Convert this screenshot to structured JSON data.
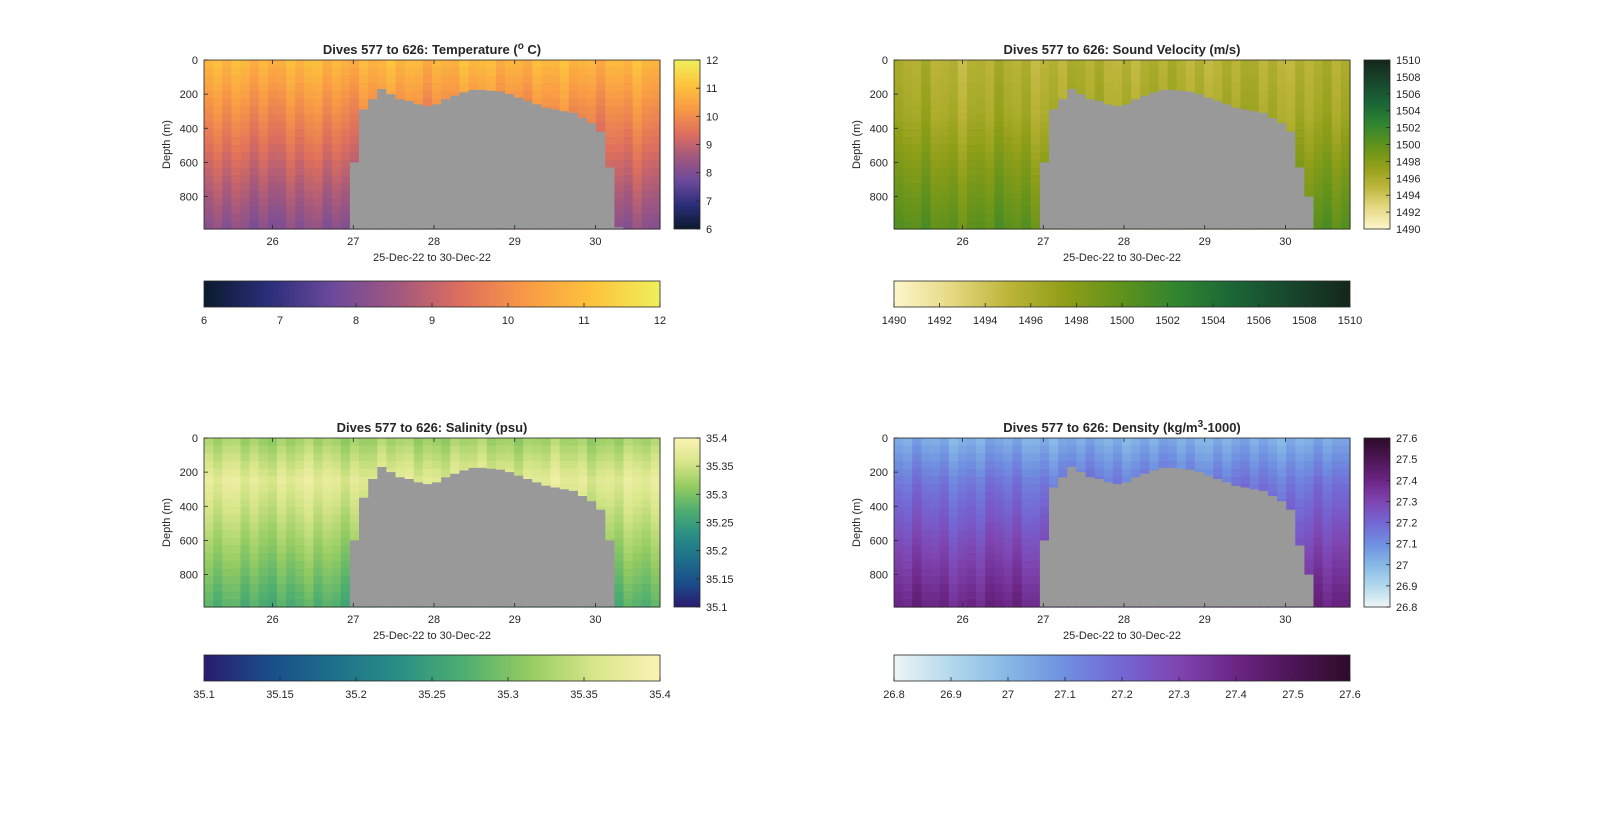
{
  "figure": {
    "background": "#ffffff",
    "land_color": "#999999",
    "panels": [
      "temperature",
      "sound_velocity",
      "salinity",
      "density"
    ]
  },
  "chart_data": [
    {
      "id": "temperature",
      "type": "heatmap",
      "title_main": "Dives 577 to 626: Temperature (",
      "title_sup": "o",
      "title_tail": " C)",
      "xlabel": "25-Dec-22 to 30-Dec-22",
      "ylabel": "Depth (m)",
      "xlim": [
        25.15,
        30.8
      ],
      "ylim": [
        0,
        990
      ],
      "xticks": [
        "26",
        "27",
        "28",
        "29",
        "30"
      ],
      "xtick_values": [
        26,
        27,
        28,
        29,
        30
      ],
      "yticks": [
        "0",
        "200",
        "400",
        "600",
        "800"
      ],
      "ytick_values": [
        0,
        200,
        400,
        600,
        800
      ],
      "x_start": 25.15,
      "x_end": 30.8,
      "dive_count": 50,
      "bottom_depth": [
        990,
        990,
        990,
        990,
        990,
        990,
        990,
        990,
        990,
        990,
        990,
        990,
        990,
        990,
        990,
        990,
        600,
        290,
        230,
        170,
        200,
        230,
        240,
        260,
        270,
        260,
        230,
        210,
        190,
        175,
        175,
        180,
        185,
        200,
        220,
        240,
        260,
        280,
        290,
        300,
        310,
        340,
        370,
        420,
        630,
        980,
        990,
        990,
        990,
        990
      ],
      "colorbar": {
        "clim": [
          6,
          12
        ],
        "ticks": [
          "6",
          "7",
          "8",
          "9",
          "10",
          "11",
          "12"
        ],
        "tick_values": [
          6,
          7,
          8,
          9,
          10,
          11,
          12
        ],
        "colors": [
          "#0b1a2e",
          "#2b2e7a",
          "#6d4a9c",
          "#a3587e",
          "#e0705c",
          "#f99c45",
          "#fdc43d",
          "#eff05c"
        ]
      },
      "profile": {
        "surface": 10.9,
        "mid": 10.1,
        "deep": 8.1,
        "thermocline": 260
      }
    },
    {
      "id": "sound_velocity",
      "type": "heatmap",
      "title_main": "Dives 577 to 626: Sound Velocity (m/s)",
      "title_sup": "",
      "title_tail": "",
      "xlabel": "25-Dec-22 to 30-Dec-22",
      "ylabel": "Depth (m)",
      "xlim": [
        25.15,
        30.8
      ],
      "ylim": [
        0,
        990
      ],
      "xticks": [
        "26",
        "27",
        "28",
        "29",
        "30"
      ],
      "xtick_values": [
        26,
        27,
        28,
        29,
        30
      ],
      "yticks": [
        "0",
        "200",
        "400",
        "600",
        "800"
      ],
      "ytick_values": [
        0,
        200,
        400,
        600,
        800
      ],
      "x_start": 25.15,
      "x_end": 30.8,
      "dive_count": 50,
      "bottom_depth": [
        990,
        990,
        990,
        990,
        990,
        990,
        990,
        990,
        990,
        990,
        990,
        990,
        990,
        990,
        990,
        990,
        600,
        290,
        230,
        170,
        200,
        230,
        240,
        260,
        270,
        260,
        230,
        210,
        190,
        175,
        175,
        180,
        185,
        200,
        220,
        240,
        260,
        280,
        290,
        300,
        310,
        340,
        370,
        420,
        630,
        800,
        990,
        990,
        990,
        990
      ],
      "colorbar": {
        "clim": [
          1490,
          1510
        ],
        "ticks": [
          "1490",
          "1492",
          "1494",
          "1496",
          "1498",
          "1500",
          "1502",
          "1504",
          "1506",
          "1508",
          "1510"
        ],
        "tick_values": [
          1490,
          1492,
          1494,
          1496,
          1498,
          1500,
          1502,
          1504,
          1506,
          1508,
          1510
        ],
        "colors": [
          "#fdf6cc",
          "#e6d984",
          "#bdb53a",
          "#8f9e18",
          "#5f921c",
          "#2f8431",
          "#1a6436",
          "#18452c",
          "#14261a"
        ]
      },
      "profile": {
        "surface": 1495.4,
        "mid": 1496.2,
        "deep": 1500.2,
        "thermocline": 320
      }
    },
    {
      "id": "salinity",
      "type": "heatmap",
      "title_main": "Dives 577 to 626: Salinity (psu)",
      "title_sup": "",
      "title_tail": "",
      "xlabel": "25-Dec-22 to 30-Dec-22",
      "ylabel": "Depth (m)",
      "xlim": [
        25.15,
        30.8
      ],
      "ylim": [
        0,
        990
      ],
      "xticks": [
        "26",
        "27",
        "28",
        "29",
        "30"
      ],
      "xtick_values": [
        26,
        27,
        28,
        29,
        30
      ],
      "yticks": [
        "0",
        "200",
        "400",
        "600",
        "800"
      ],
      "ytick_values": [
        0,
        200,
        400,
        600,
        800
      ],
      "x_start": 25.15,
      "x_end": 30.8,
      "dive_count": 50,
      "bottom_depth": [
        990,
        990,
        990,
        990,
        990,
        990,
        990,
        990,
        990,
        990,
        990,
        990,
        990,
        990,
        990,
        990,
        600,
        350,
        240,
        170,
        200,
        230,
        240,
        260,
        270,
        260,
        230,
        210,
        190,
        175,
        175,
        180,
        185,
        200,
        220,
        240,
        260,
        280,
        290,
        300,
        310,
        340,
        370,
        420,
        600,
        990,
        990,
        990,
        990,
        990
      ],
      "colorbar": {
        "clim": [
          35.1,
          35.4
        ],
        "ticks": [
          "35.1",
          "35.15",
          "35.2",
          "35.25",
          "35.3",
          "35.35",
          "35.4"
        ],
        "tick_values": [
          35.1,
          35.15,
          35.2,
          35.25,
          35.3,
          35.35,
          35.4
        ],
        "colors": [
          "#2a1b6e",
          "#1a4d8a",
          "#1d708a",
          "#2a8f86",
          "#4fae6f",
          "#95cc62",
          "#d8e68a",
          "#fcf3b4"
        ]
      },
      "profile": {
        "surface": 35.32,
        "mid": 35.37,
        "deep": 35.27,
        "thermocline": 250
      }
    },
    {
      "id": "density",
      "type": "heatmap",
      "title_main": "Dives 577 to 626: Density (kg/m",
      "title_sup": "3",
      "title_tail": "-1000)",
      "xlabel": "25-Dec-22 to 30-Dec-22",
      "ylabel": "Depth (m)",
      "xlim": [
        25.15,
        30.8
      ],
      "ylim": [
        0,
        990
      ],
      "xticks": [
        "26",
        "27",
        "28",
        "29",
        "30"
      ],
      "xtick_values": [
        26,
        27,
        28,
        29,
        30
      ],
      "yticks": [
        "0",
        "200",
        "400",
        "600",
        "800"
      ],
      "ytick_values": [
        0,
        200,
        400,
        600,
        800
      ],
      "x_start": 25.15,
      "x_end": 30.8,
      "dive_count": 50,
      "bottom_depth": [
        990,
        990,
        990,
        990,
        990,
        990,
        990,
        990,
        990,
        990,
        990,
        990,
        990,
        990,
        990,
        990,
        600,
        290,
        230,
        170,
        200,
        230,
        240,
        260,
        270,
        260,
        230,
        210,
        190,
        175,
        175,
        180,
        185,
        200,
        220,
        240,
        260,
        280,
        290,
        300,
        310,
        340,
        370,
        420,
        630,
        800,
        990,
        990,
        990,
        990
      ],
      "colorbar": {
        "clim": [
          26.8,
          27.6
        ],
        "ticks": [
          "26.8",
          "26.9",
          "27",
          "27.1",
          "27.2",
          "27.3",
          "27.4",
          "27.5",
          "27.6"
        ],
        "tick_values": [
          26.8,
          26.9,
          27.0,
          27.1,
          27.2,
          27.3,
          27.4,
          27.5,
          27.6
        ],
        "colors": [
          "#eef6f6",
          "#b3d8ec",
          "#86b8e6",
          "#6f8fe0",
          "#7466d4",
          "#7f44b0",
          "#6b2584",
          "#4d1556",
          "#2d0b2a"
        ]
      },
      "profile": {
        "surface": 27.02,
        "mid": 27.16,
        "deep": 27.4,
        "thermocline": 270
      }
    }
  ]
}
